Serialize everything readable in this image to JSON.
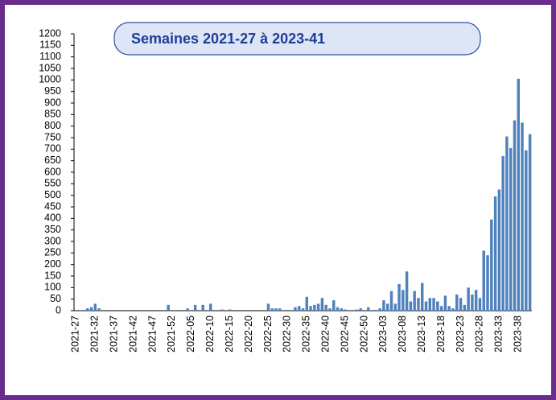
{
  "chart_data": {
    "type": "bar",
    "title": "Semaines 2021-27 à 2023-41",
    "categories": [
      "2021-27",
      null,
      null,
      null,
      null,
      "2021-32",
      null,
      null,
      null,
      null,
      "2021-37",
      null,
      null,
      null,
      null,
      "2021-42",
      null,
      null,
      null,
      null,
      "2021-47",
      null,
      null,
      null,
      null,
      "2021-52",
      null,
      null,
      null,
      null,
      "2022-05",
      null,
      null,
      null,
      null,
      "2022-10",
      null,
      null,
      null,
      null,
      "2022-15",
      null,
      null,
      null,
      null,
      "2022-20",
      null,
      null,
      null,
      null,
      "2022-25",
      null,
      null,
      null,
      null,
      "2022-30",
      null,
      null,
      null,
      null,
      "2022-35",
      null,
      null,
      null,
      null,
      "2022-40",
      null,
      null,
      null,
      null,
      "2022-45",
      null,
      null,
      null,
      null,
      "2022-50",
      null,
      null,
      null,
      null,
      "2023-03",
      null,
      null,
      null,
      null,
      "2023-08",
      null,
      null,
      null,
      null,
      "2023-13",
      null,
      null,
      null,
      null,
      "2023-18",
      null,
      null,
      null,
      null,
      "2023-23",
      null,
      null,
      null,
      null,
      "2023-28",
      null,
      null,
      null,
      null,
      "2023-33",
      null,
      null,
      null,
      null,
      "2023-38",
      null,
      null,
      null
    ],
    "values": [
      0,
      0,
      0,
      10,
      15,
      30,
      10,
      0,
      0,
      0,
      0,
      0,
      0,
      0,
      0,
      0,
      0,
      0,
      0,
      0,
      0,
      0,
      0,
      0,
      25,
      0,
      0,
      0,
      0,
      10,
      0,
      25,
      0,
      25,
      0,
      30,
      0,
      0,
      5,
      0,
      5,
      0,
      0,
      0,
      0,
      0,
      0,
      0,
      0,
      0,
      30,
      10,
      10,
      10,
      0,
      0,
      0,
      15,
      20,
      10,
      60,
      20,
      25,
      30,
      55,
      25,
      10,
      45,
      15,
      10,
      5,
      0,
      0,
      5,
      10,
      0,
      15,
      0,
      0,
      10,
      45,
      30,
      85,
      30,
      115,
      90,
      170,
      40,
      85,
      55,
      120,
      40,
      55,
      55,
      40,
      20,
      65,
      20,
      10,
      70,
      55,
      25,
      100,
      70,
      90,
      55,
      260,
      240,
      395,
      495,
      525,
      670,
      755,
      705,
      825,
      1005,
      815,
      695,
      765
    ],
    "color": "#4f81bd",
    "ylim": [
      0,
      1200
    ],
    "yticks": [
      0,
      50,
      100,
      150,
      200,
      250,
      300,
      350,
      400,
      450,
      500,
      550,
      600,
      650,
      700,
      750,
      800,
      850,
      900,
      950,
      1000,
      1050,
      1100,
      1150,
      1200
    ],
    "grid": false
  }
}
